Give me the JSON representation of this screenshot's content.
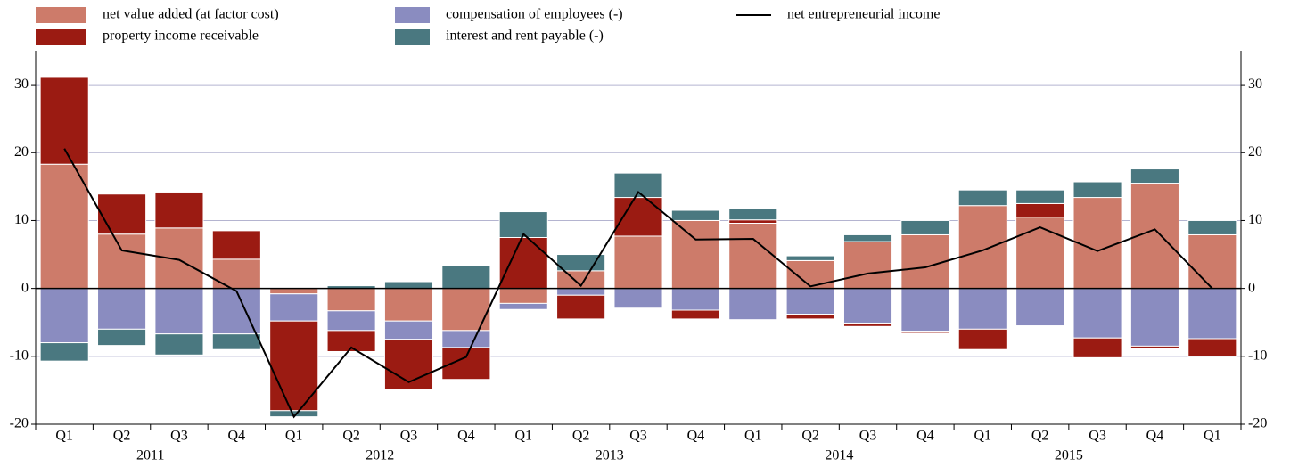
{
  "chart_data": {
    "type": "bar",
    "categories": [
      "Q1",
      "Q2",
      "Q3",
      "Q4",
      "Q1",
      "Q2",
      "Q3",
      "Q4",
      "Q1",
      "Q2",
      "Q3",
      "Q4",
      "Q1",
      "Q2",
      "Q3",
      "Q4",
      "Q1",
      "Q2",
      "Q3",
      "Q4",
      "Q1"
    ],
    "years": [
      "2011",
      "2012",
      "2013",
      "2014",
      "2015"
    ],
    "series": [
      {
        "name": "net value added (at factor cost)",
        "color": "#cd7b6a",
        "values": [
          18.3,
          8.0,
          8.9,
          4.3,
          -0.8,
          -3.3,
          -4.8,
          -6.2,
          -2.2,
          2.6,
          7.7,
          10.0,
          9.6,
          4.1,
          6.9,
          7.9,
          12.2,
          10.5,
          13.4,
          15.5,
          7.9
        ]
      },
      {
        "name": "compensation of employees (-)",
        "color": "#8a8cc0",
        "values": [
          -8.0,
          -6.0,
          -6.7,
          -6.7,
          -4.0,
          -2.9,
          -2.7,
          -2.5,
          -0.9,
          -1.0,
          -2.9,
          -3.2,
          -4.6,
          -3.8,
          -5.1,
          -6.3,
          -6.0,
          -5.5,
          -7.3,
          -8.5,
          -7.4
        ]
      },
      {
        "name": "property income receivable",
        "color": "#9b1b12",
        "values": [
          12.9,
          5.9,
          5.3,
          4.2,
          -13.2,
          -3.1,
          -7.4,
          -4.7,
          7.5,
          -3.5,
          5.7,
          -1.3,
          0.5,
          -0.7,
          -0.5,
          -0.3,
          -3.0,
          2.0,
          -2.9,
          -0.3,
          -2.6
        ]
      },
      {
        "name": "interest and rent payable (-)",
        "color": "#4a7880",
        "values": [
          -2.7,
          -2.4,
          -3.1,
          -2.3,
          -0.9,
          0.4,
          1.0,
          3.3,
          3.8,
          2.4,
          3.6,
          1.5,
          1.6,
          0.7,
          1.0,
          2.1,
          2.3,
          2.0,
          2.3,
          2.1,
          2.1
        ]
      },
      {
        "name": "net entrepreneurial income",
        "type": "line",
        "color": "#000000",
        "values": [
          20.6,
          5.6,
          4.2,
          -0.4,
          -18.9,
          -8.7,
          -13.8,
          -10.1,
          8.0,
          0.4,
          14.2,
          7.2,
          7.3,
          0.3,
          2.2,
          3.1,
          5.6,
          9.0,
          5.5,
          8.7,
          0.0
        ]
      }
    ],
    "ylim": [
      -20,
      35
    ],
    "yticks": [
      -20,
      -10,
      0,
      10,
      20,
      30
    ],
    "grid": true,
    "legend": "top"
  }
}
